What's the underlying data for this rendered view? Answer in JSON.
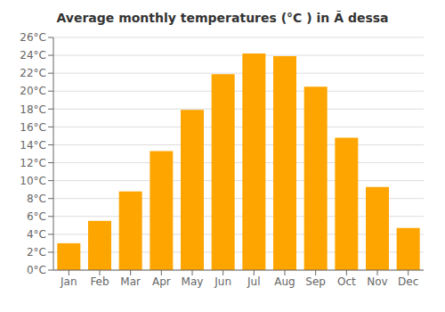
{
  "chart_data": {
    "type": "bar",
    "title": "Average monthly temperatures (°C ) in Ã dessa",
    "categories": [
      "Jan",
      "Feb",
      "Mar",
      "Apr",
      "May",
      "Jun",
      "Jul",
      "Aug",
      "Sep",
      "Oct",
      "Nov",
      "Dec"
    ],
    "values": [
      3.0,
      5.5,
      8.8,
      13.3,
      17.9,
      21.9,
      24.2,
      23.9,
      20.5,
      14.8,
      9.3,
      4.7
    ],
    "color": "#FFA500",
    "ylim": [
      0,
      26
    ],
    "yticks": [
      {
        "value": 0,
        "label": "0°C"
      },
      {
        "value": 2,
        "label": "2°C"
      },
      {
        "value": 4,
        "label": "4°C"
      },
      {
        "value": 6,
        "label": "6°C"
      },
      {
        "value": 8,
        "label": "8°C"
      },
      {
        "value": 10,
        "label": "10°C"
      },
      {
        "value": 12,
        "label": "12°C"
      },
      {
        "value": 14,
        "label": "14°C"
      },
      {
        "value": 16,
        "label": "16°C"
      },
      {
        "value": 18,
        "label": "18°C"
      },
      {
        "value": 20,
        "label": "20°C"
      },
      {
        "value": 22,
        "label": "22°C"
      },
      {
        "value": 24,
        "label": "24°C"
      },
      {
        "value": 26,
        "label": "26°C"
      }
    ],
    "grid": true
  }
}
